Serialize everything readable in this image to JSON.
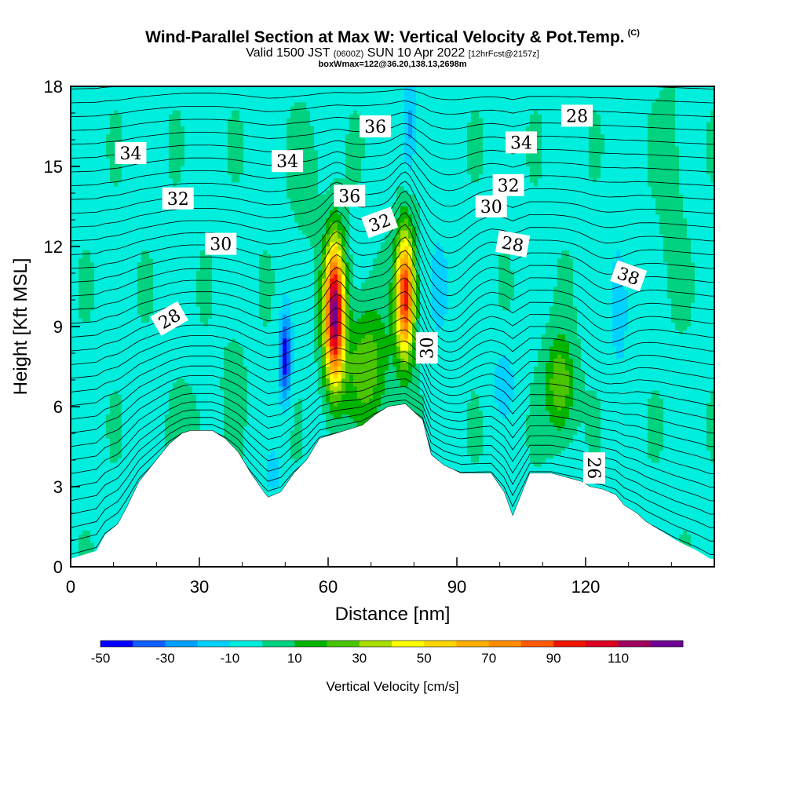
{
  "header": {
    "title": "Wind-Parallel Section at Max W: Vertical Velocity & Pot.Temp.",
    "title_mark": "(C)",
    "subtitle_pre": "Valid 1500 JST ",
    "subtitle_z": "(0600Z)",
    "subtitle_mid": " SUN 10 Apr 2022 ",
    "subtitle_fcst": "[12hrFcst@2157z]",
    "subtitle2": "boxWmax=122@36.20,138.13,2698m"
  },
  "chart_data": {
    "type": "contour",
    "xlabel": "Distance [nm]",
    "ylabel": "Height [Kft MSL]",
    "xlim": [
      0,
      150
    ],
    "ylim": [
      0,
      18
    ],
    "x_ticks": [
      "0",
      "30",
      "60",
      "90",
      "120"
    ],
    "y_ticks": [
      "0",
      "3",
      "6",
      "9",
      "12",
      "15",
      "18"
    ],
    "colorbar": {
      "title": "Vertical Velocity [cm/s]",
      "tick_labels": [
        "-50",
        "-30",
        "-10",
        "10",
        "30",
        "50",
        "70",
        "90",
        "110"
      ],
      "levels": [
        -50,
        -40,
        -30,
        -20,
        -10,
        0,
        10,
        20,
        30,
        40,
        50,
        60,
        70,
        80,
        90,
        100,
        110,
        120
      ],
      "colors": [
        "#0000ff",
        "#0f5fff",
        "#00a0ff",
        "#00d2ff",
        "#00eedd",
        "#00d27f",
        "#00b400",
        "#49c600",
        "#a8de00",
        "#ffff00",
        "#ffd700",
        "#ffaf00",
        "#ff8c00",
        "#ff5a00",
        "#ee1400",
        "#dd0023",
        "#a0005f",
        "#6e0096"
      ]
    },
    "theta_contour_labels": [
      "34",
      "32",
      "30",
      "28",
      "34",
      "36",
      "32",
      "30",
      "36",
      "34",
      "32",
      "30",
      "28",
      "38",
      "28",
      "26"
    ],
    "terrain_profile": {
      "x": [
        0,
        6,
        8,
        11,
        13,
        16,
        19,
        21,
        23,
        26,
        28,
        33,
        36,
        39,
        42,
        45,
        46,
        49,
        52,
        55,
        58,
        68,
        71,
        74,
        78,
        82,
        84,
        87,
        91,
        98,
        101,
        103,
        107,
        112,
        119,
        121,
        124,
        127,
        129,
        132,
        134,
        137,
        141,
        146,
        149,
        150
      ],
      "y": [
        0.3,
        0.6,
        1.2,
        1.6,
        2.2,
        3.2,
        3.8,
        4.2,
        4.6,
        5.0,
        5.1,
        5.1,
        4.8,
        4.3,
        3.5,
        2.8,
        2.6,
        2.8,
        3.5,
        4.0,
        4.8,
        5.3,
        5.7,
        6.0,
        6.1,
        5.5,
        4.2,
        3.8,
        3.5,
        3.5,
        2.8,
        1.9,
        3.5,
        3.5,
        3.2,
        3.0,
        2.9,
        2.7,
        2.3,
        2.0,
        1.7,
        1.4,
        1.0,
        0.6,
        0.3,
        0.3
      ]
    },
    "w_maxima_cm_s": [
      {
        "x": 61.5,
        "height_kft": 9.5,
        "w": 120
      },
      {
        "x": 78,
        "height_kft": 10.2,
        "w": 95
      },
      {
        "x": 114,
        "height_kft": 6.8,
        "w": 35
      },
      {
        "x": 50,
        "height_kft": 7.8,
        "w": -42
      },
      {
        "x": 79,
        "height_kft": 16.5,
        "w": -20
      }
    ],
    "grid": false
  }
}
